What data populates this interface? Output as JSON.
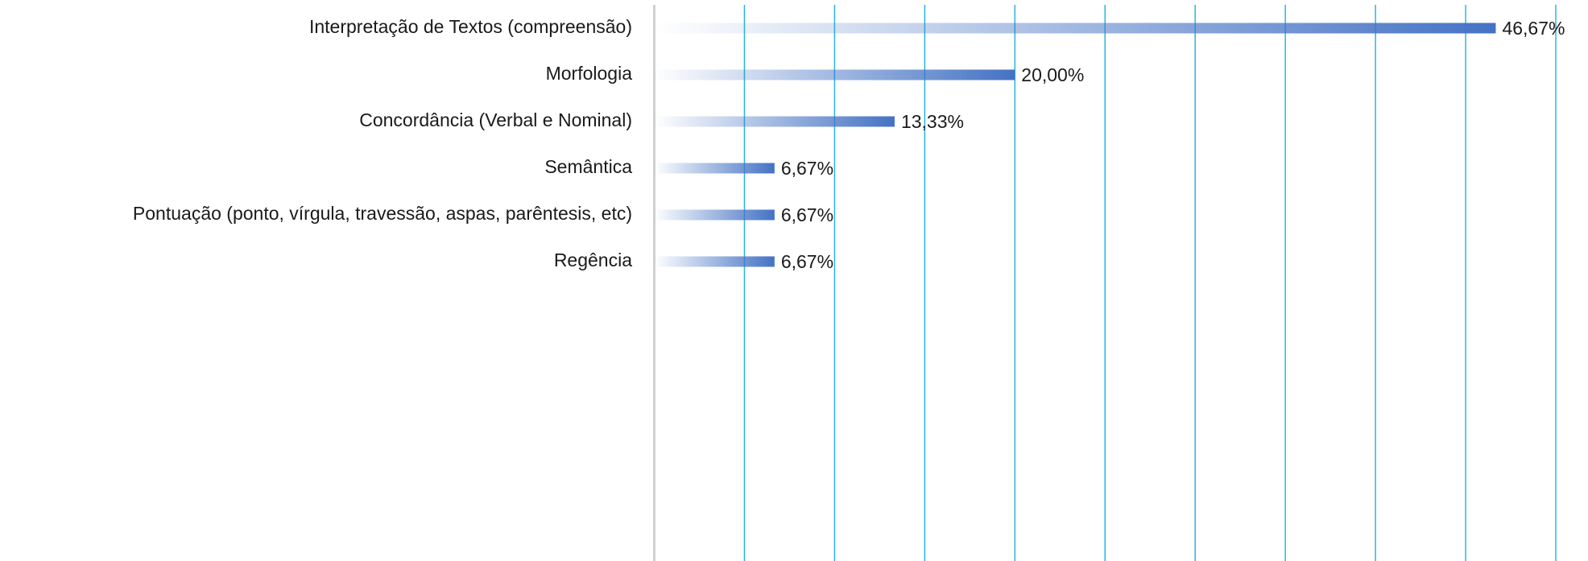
{
  "chart_data": {
    "type": "bar",
    "orientation": "horizontal",
    "categories": [
      "Interpretação de Textos (compreensão)",
      "Morfologia",
      "Concordância (Verbal e Nominal)",
      "Semântica",
      "Pontuação (ponto, vírgula, travessão, aspas, parêntesis, etc)",
      "Regência"
    ],
    "values": [
      46.67,
      20,
      13.33,
      6.67,
      6.67,
      6.67
    ],
    "value_labels": [
      "46,67%",
      "20,00%",
      "13,33%",
      "6,67%",
      "6,67%",
      "6,67%"
    ],
    "color": "#4472c4",
    "xlim": [
      0,
      50
    ],
    "xticks": [
      0,
      5,
      10,
      15,
      20,
      25,
      30,
      35,
      40,
      45,
      50
    ],
    "grid": true,
    "grid_color": "#2bb5e0"
  }
}
